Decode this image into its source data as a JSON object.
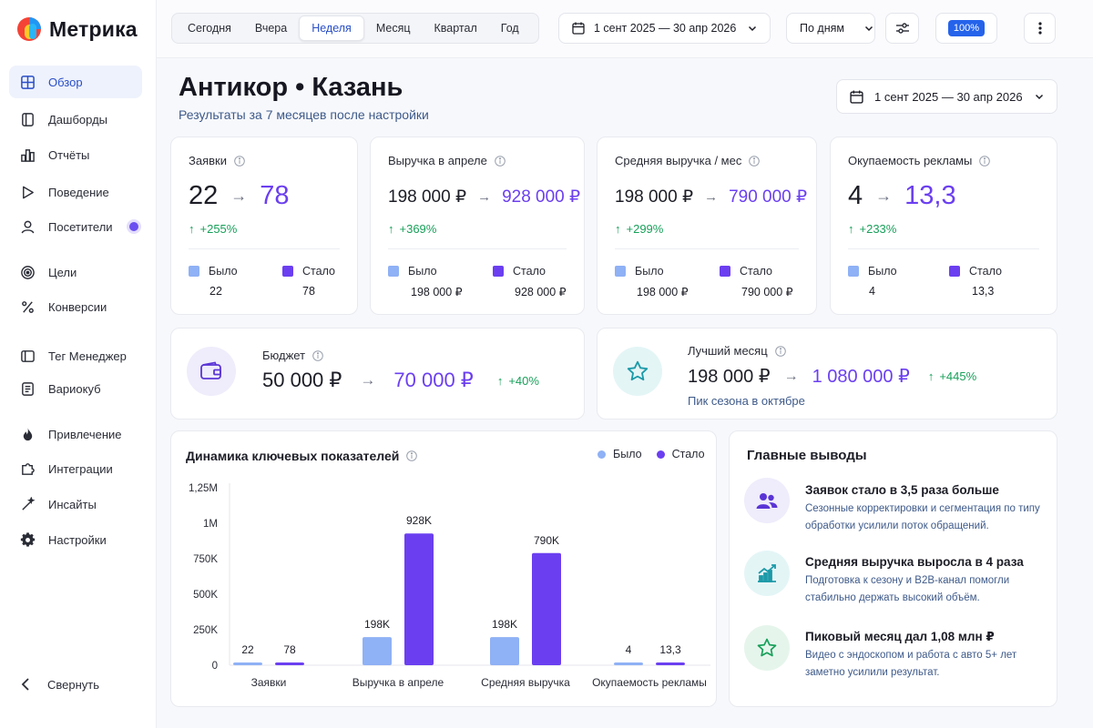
{
  "app": {
    "name": "Метрика"
  },
  "sidebar": {
    "items": [
      {
        "label": "Обзор",
        "icon": "grid-icon",
        "active": true
      },
      {
        "label": "Дашборды",
        "icon": "book-icon"
      },
      {
        "label": "Отчёты",
        "icon": "bar-chart-icon"
      },
      {
        "label": "Поведение",
        "icon": "play-icon"
      },
      {
        "label": "Посетители",
        "icon": "user-icon",
        "badge": true
      },
      {
        "label": "Цели",
        "icon": "target-icon"
      },
      {
        "label": "Конверсии",
        "icon": "percent-icon"
      },
      {
        "label": "Тег Менеджер",
        "icon": "tag-icon"
      },
      {
        "label": "Вариокуб",
        "icon": "document-icon"
      },
      {
        "label": "Привлечение",
        "icon": "flame-icon"
      },
      {
        "label": "Интеграции",
        "icon": "puzzle-icon"
      },
      {
        "label": "Инсайты",
        "icon": "wand-icon"
      },
      {
        "label": "Настройки",
        "icon": "gear-icon"
      }
    ],
    "collapse_label": "Свернуть"
  },
  "topbar": {
    "periods": [
      "Сегодня",
      "Вчера",
      "Неделя",
      "Месяц",
      "Квартал",
      "Год"
    ],
    "active_period": "Неделя",
    "date_range": "1 сент 2025 — 30 апр 2026",
    "granularity": "По дням",
    "zoom": "100%"
  },
  "header": {
    "title": "Антикор • Казань",
    "subtitle": "Результаты за 7 месяцев после настройки",
    "date_range": "1 сент 2025 — 30 апр 2026"
  },
  "kpis": [
    {
      "title": "Заявки",
      "from": "22",
      "to": "78",
      "delta": "+255%",
      "before_label": "Было",
      "after_label": "Стало",
      "before": "22",
      "after": "78"
    },
    {
      "title": "Выручка в апреле",
      "from": "198 000 ₽",
      "to": "928 000 ₽",
      "delta": "+369%",
      "before_label": "Было",
      "after_label": "Стало",
      "before": "198 000 ₽",
      "after": "928 000 ₽"
    },
    {
      "title": "Средняя выручка / мес",
      "from": "198 000 ₽",
      "to": "790 000 ₽",
      "delta": "+299%",
      "before_label": "Было",
      "after_label": "Стало",
      "before": "198 000 ₽",
      "after": "790 000 ₽"
    },
    {
      "title": "Окупаемость рекламы",
      "from": "4",
      "to": "13,3",
      "delta": "+233%",
      "before_label": "Было",
      "after_label": "Стало",
      "before": "4",
      "after": "13,3"
    }
  ],
  "budget": {
    "title": "Бюджет",
    "from": "50 000 ₽",
    "to": "70 000 ₽",
    "delta": "+40%"
  },
  "best_month": {
    "title": "Лучший месяц",
    "from": "198 000 ₽",
    "to": "1 080 000 ₽",
    "delta": "+445%",
    "note": "Пик сезона в октябре"
  },
  "colors": {
    "before": "#8fb1f5",
    "after": "#6b3ff0",
    "accent": "#2a4fc7",
    "positive": "#18a05a"
  },
  "chart_data": {
    "type": "bar",
    "title": "Динамика ключевых показателей",
    "categories": [
      "Заявки",
      "Выручка в апреле",
      "Средняя выручка",
      "Окупаемость рекламы"
    ],
    "series": [
      {
        "name": "Было",
        "values": [
          22,
          198000,
          198000,
          4
        ],
        "labels": [
          "22",
          "198K",
          "198K",
          "4"
        ]
      },
      {
        "name": "Стало",
        "values": [
          78,
          928000,
          790000,
          13.3
        ],
        "labels": [
          "78",
          "928K",
          "790K",
          "13,3"
        ]
      }
    ],
    "y_ticks": [
      "0",
      "250K",
      "500K",
      "750K",
      "1M",
      "1,25M"
    ],
    "ylim": [
      0,
      1250000
    ],
    "legend": "top-right",
    "grid": false
  },
  "insights": {
    "title": "Главные выводы",
    "items": [
      {
        "head": "Заявок стало в 3,5 раза больше",
        "text": "Сезонные корректировки и сегментация по типу обработки усилили поток обращений.",
        "icon": "users-icon"
      },
      {
        "head": "Средняя выручка выросла в 4 раза",
        "text": "Подготовка к сезону и B2B-канал помогли стабильно держать высокий объём.",
        "icon": "trend-up-icon"
      },
      {
        "head": "Пиковый месяц дал 1,08 млн ₽",
        "text": "Видео с эндоскопом и работа с авто 5+ лет заметно усилили результат.",
        "icon": "star-icon"
      }
    ]
  }
}
